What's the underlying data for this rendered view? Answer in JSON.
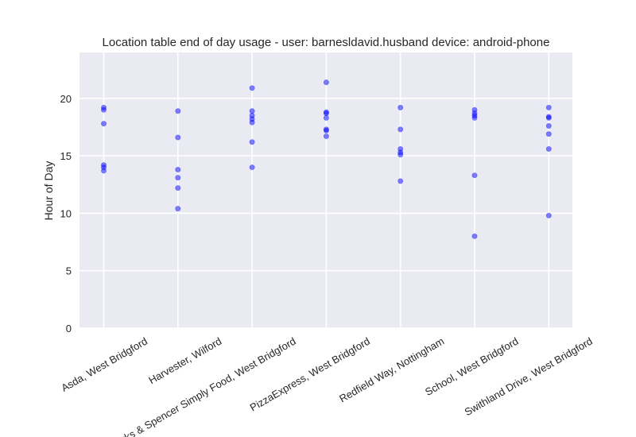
{
  "chart_data": {
    "type": "scatter",
    "title": "Location table end of day usage -  user: barnesldavid.husband device: android-phone",
    "xlabel": "",
    "ylabel": "Hour of Day",
    "ylim": [
      0,
      24
    ],
    "yticks": [
      0,
      5,
      10,
      15,
      20
    ],
    "grid": true,
    "categories": [
      "Asda, West Bridgford",
      "Harvester, Wilford",
      "Marks & Spencer Simply Food, West Bridgford",
      "PizzaExpress, West Bridgford",
      "Redfield Way, Nottingham",
      "School, West Bridgford",
      "Swithland Drive, West Bridgford"
    ],
    "points": [
      {
        "category": "Asda, West Bridgford",
        "y": [
          19.2,
          19.0,
          17.8,
          14.2,
          14.0,
          13.7
        ]
      },
      {
        "category": "Harvester, Wilford",
        "y": [
          18.9,
          16.6,
          13.8,
          13.1,
          12.2,
          10.4
        ]
      },
      {
        "category": "Marks & Spencer Simply Food, West Bridgford",
        "y": [
          20.9,
          18.9,
          18.5,
          18.2,
          17.9,
          16.2,
          14.0
        ]
      },
      {
        "category": "PizzaExpress, West Bridgford",
        "y": [
          21.4,
          18.8,
          18.7,
          18.3,
          17.3,
          17.2,
          16.7
        ]
      },
      {
        "category": "Redfield Way, Nottingham",
        "y": [
          19.2,
          17.3,
          15.6,
          15.3,
          15.1,
          12.8
        ]
      },
      {
        "category": "School, West Bridgford",
        "y": [
          19.0,
          18.7,
          18.5,
          18.3,
          13.3,
          8.0
        ]
      },
      {
        "category": "Swithland Drive, West Bridgford",
        "y": [
          19.2,
          18.4,
          18.3,
          17.6,
          16.9,
          15.6,
          9.8
        ]
      }
    ],
    "colors": {
      "point": "#0000ff",
      "plot_background": "#eaeaf2",
      "grid": "#ffffff"
    }
  }
}
